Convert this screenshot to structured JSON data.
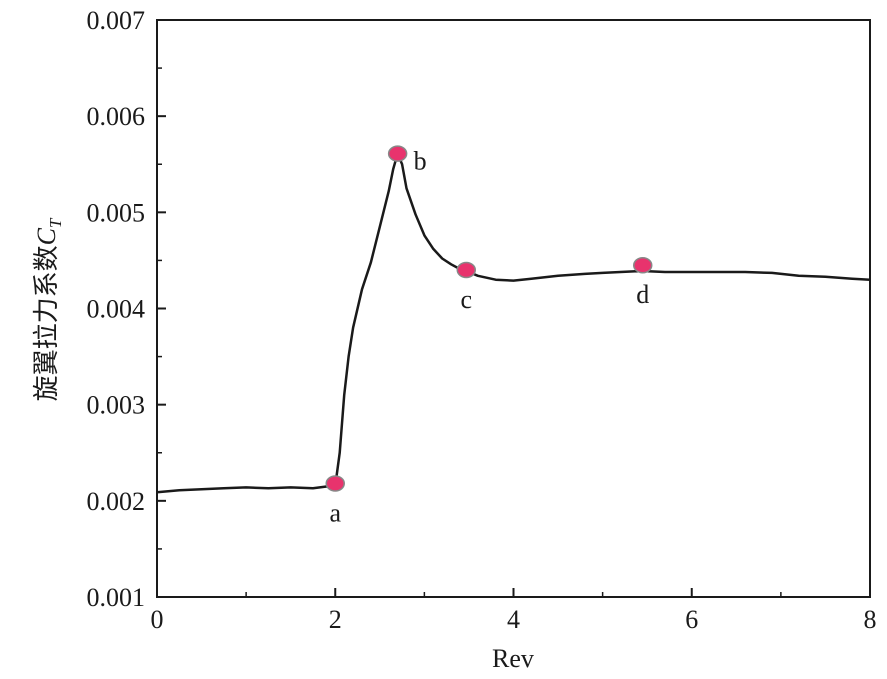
{
  "chart_data": {
    "type": "line",
    "title": "",
    "xlabel": "Rev",
    "ylabel": "旋翼拉力系数",
    "ylabel_symbol": "C",
    "ylabel_subscript": "T",
    "xlim": [
      0,
      8
    ],
    "ylim": [
      0.001,
      0.007
    ],
    "xticks": [
      0,
      2,
      4,
      6,
      8
    ],
    "xtick_labels": [
      "0",
      "2",
      "4",
      "6",
      "8"
    ],
    "yticks": [
      0.001,
      0.002,
      0.003,
      0.004,
      0.005,
      0.006,
      0.007
    ],
    "ytick_labels": [
      "0.001",
      "0.002",
      "0.003",
      "0.004",
      "0.005",
      "0.006",
      "0.007"
    ],
    "grid": false,
    "line_color": "#1a1a1a",
    "marker_color": "#e8336d",
    "marker_edge_color": "#888888",
    "series": [
      {
        "x": [
          0,
          0.25,
          0.5,
          0.75,
          1.0,
          1.25,
          1.5,
          1.75,
          2.0,
          2.05,
          2.1,
          2.15,
          2.2,
          2.3,
          2.4,
          2.5,
          2.6,
          2.65,
          2.7,
          2.75,
          2.8,
          2.9,
          3.0,
          3.1,
          3.2,
          3.3,
          3.4,
          3.47,
          3.6,
          3.8,
          4.0,
          4.2,
          4.5,
          4.8,
          5.0,
          5.2,
          5.45,
          5.7,
          6.0,
          6.3,
          6.6,
          6.9,
          7.2,
          7.5,
          7.8,
          8.0
        ],
        "y": [
          0.00209,
          0.00211,
          0.00212,
          0.00213,
          0.00214,
          0.00213,
          0.00214,
          0.00213,
          0.00216,
          0.0025,
          0.0031,
          0.0035,
          0.0038,
          0.0042,
          0.00448,
          0.00485,
          0.00522,
          0.00545,
          0.00561,
          0.0055,
          0.00525,
          0.00498,
          0.00476,
          0.00462,
          0.00452,
          0.00446,
          0.00441,
          0.00439,
          0.00434,
          0.0043,
          0.00429,
          0.00431,
          0.00434,
          0.00436,
          0.00437,
          0.00438,
          0.00439,
          0.00438,
          0.00438,
          0.00438,
          0.00438,
          0.00437,
          0.00434,
          0.00433,
          0.00431,
          0.0043
        ]
      }
    ],
    "annotations": [
      {
        "label": "a",
        "x": 2.0,
        "y": 0.00218,
        "label_pos": "below"
      },
      {
        "label": "b",
        "x": 2.7,
        "y": 0.00561,
        "label_pos": "right"
      },
      {
        "label": "c",
        "x": 3.47,
        "y": 0.0044,
        "label_pos": "below"
      },
      {
        "label": "d",
        "x": 5.45,
        "y": 0.00445,
        "label_pos": "below"
      }
    ]
  }
}
